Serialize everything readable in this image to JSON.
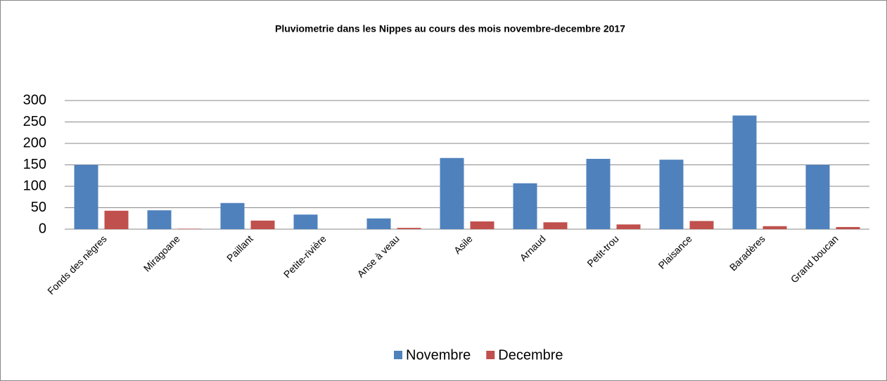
{
  "chart_data": {
    "type": "bar",
    "title": "Pluviometrie dans les Nippes au cours des mois novembre-decembre 2017",
    "categories": [
      "Fonds des nègres",
      "Miragoane",
      "Paillant",
      "Petite-rivière",
      "Anse à veau",
      "Asile",
      "Arnaud",
      "Petit-trou",
      "Plaisance",
      "Baradères",
      "Grand boucan"
    ],
    "series": [
      {
        "name": "Novembre",
        "color": "#4f81bd",
        "values": [
          150,
          44,
          61,
          34,
          25,
          166,
          107,
          164,
          162,
          265,
          150
        ]
      },
      {
        "name": "Decembre",
        "color": "#c0504d",
        "values": [
          43,
          1,
          20,
          0,
          3,
          18,
          16,
          11,
          19,
          7,
          5
        ]
      }
    ],
    "ylim": [
      0,
      300
    ],
    "yticks": [
      0,
      50,
      100,
      150,
      200,
      250,
      300
    ],
    "grid": true,
    "legend": "bottom"
  }
}
